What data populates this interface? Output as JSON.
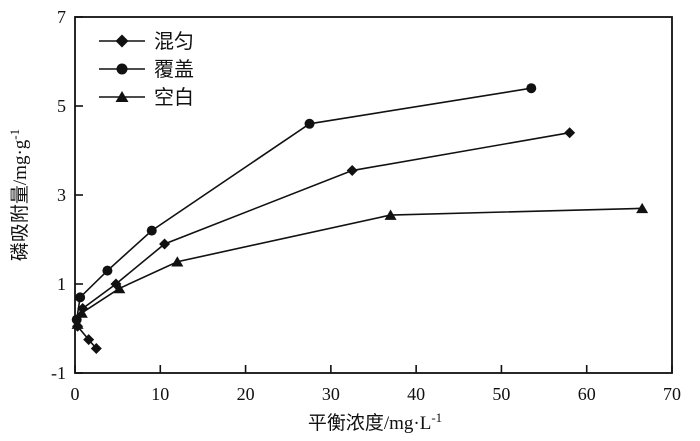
{
  "figure": {
    "background": "#ffffff",
    "axis_color": "#111111"
  },
  "chart_data": {
    "type": "line",
    "title": "",
    "grid": false,
    "x_axis": {
      "label_main": "平衡浓度/mg·L",
      "label_sup": "-1",
      "ticks": [
        0,
        10,
        20,
        30,
        40,
        50,
        60,
        70
      ],
      "range": [
        0,
        70
      ]
    },
    "y_axis": {
      "label_main": "磷吸附量/mg·g",
      "label_sup": "-1",
      "ticks": [
        -1,
        1,
        3,
        5,
        7
      ],
      "range": [
        -1,
        7
      ]
    },
    "legend": {
      "position": "top-left"
    },
    "series": [
      {
        "name": "混匀",
        "marker": "diamond",
        "color": "#111111",
        "points": [
          [
            2.5,
            -0.45
          ],
          [
            1.6,
            -0.25
          ],
          [
            0.3,
            0.05
          ],
          [
            0.9,
            0.45
          ],
          [
            4.8,
            1.0
          ],
          [
            10.5,
            1.9
          ],
          [
            32.5,
            3.55
          ],
          [
            58,
            4.4
          ]
        ]
      },
      {
        "name": "覆盖",
        "marker": "circle",
        "color": "#111111",
        "points": [
          [
            0.2,
            0.2
          ],
          [
            0.6,
            0.7
          ],
          [
            3.8,
            1.3
          ],
          [
            9,
            2.2
          ],
          [
            27.5,
            4.6
          ],
          [
            53.5,
            5.4
          ]
        ]
      },
      {
        "name": "空白",
        "marker": "triangle",
        "color": "#111111",
        "points": [
          [
            0.3,
            0.1
          ],
          [
            0.8,
            0.35
          ],
          [
            5.2,
            0.9
          ],
          [
            12,
            1.5
          ],
          [
            37,
            2.55
          ],
          [
            66.5,
            2.7
          ]
        ]
      }
    ]
  }
}
